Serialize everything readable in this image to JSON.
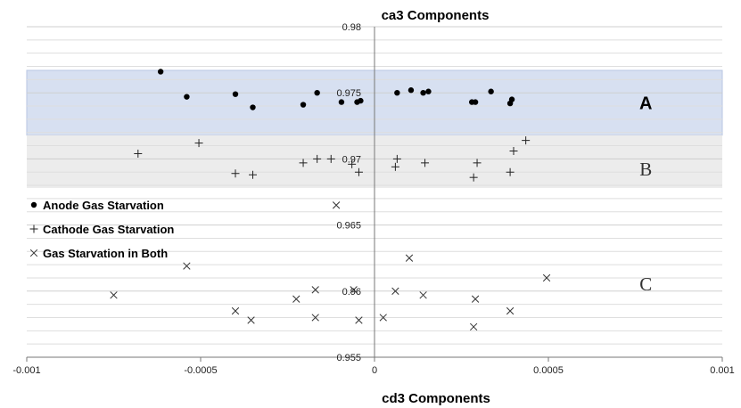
{
  "chart_data": {
    "type": "scatter",
    "title": "ca3 Components",
    "xlabel": "cd3  Components",
    "ylabel": "",
    "xlim": [
      -0.001,
      0.001
    ],
    "ylim": [
      0.955,
      0.98
    ],
    "x_ticks": [
      {
        "value": -0.001,
        "label": "-0.001"
      },
      {
        "value": -0.0005,
        "label": "-0.0005"
      },
      {
        "value": 0,
        "label": "0"
      },
      {
        "value": 0.0005,
        "label": "0.0005"
      },
      {
        "value": 0.001,
        "label": "0.001"
      }
    ],
    "y_ticks": [
      {
        "value": 0.955,
        "label": "0.955"
      },
      {
        "value": 0.96,
        "label": "0.96"
      },
      {
        "value": 0.965,
        "label": "0.965"
      },
      {
        "value": 0.97,
        "label": "0.97"
      },
      {
        "value": 0.975,
        "label": "0.975"
      },
      {
        "value": 0.98,
        "label": "0.98"
      }
    ],
    "grid": true,
    "legend_position": "left",
    "regions": [
      {
        "label": "A",
        "y_range": [
          0.9718,
          0.9767
        ],
        "color": "#d7e0f1",
        "label_at": {
          "x": 0.00078,
          "y": 0.9743
        }
      },
      {
        "label": "B",
        "y_range": [
          0.9678,
          0.9718
        ],
        "color": "#ececec",
        "label_at": {
          "x": 0.00078,
          "y": 0.9693
        }
      },
      {
        "label": "C",
        "y_range": null,
        "color": null,
        "label_at": {
          "x": 0.00078,
          "y": 0.9606
        }
      }
    ],
    "series": [
      {
        "name": "Anode Gas Starvation",
        "marker": "dot",
        "points": [
          [
            -0.000615,
            0.9766
          ],
          [
            -0.00054,
            0.9747
          ],
          [
            -0.0004,
            0.9749
          ],
          [
            -0.00035,
            0.9739
          ],
          [
            -0.000165,
            0.975
          ],
          [
            -0.000205,
            0.9741
          ],
          [
            -9.5e-05,
            0.9743
          ],
          [
            -5e-05,
            0.9743
          ],
          [
            -4e-05,
            0.9744
          ],
          [
            6.5e-05,
            0.975
          ],
          [
            0.000105,
            0.9752
          ],
          [
            0.00014,
            0.975
          ],
          [
            0.000155,
            0.9751
          ],
          [
            0.00028,
            0.9743
          ],
          [
            0.00029,
            0.9743
          ],
          [
            0.000335,
            0.9751
          ],
          [
            0.00039,
            0.9742
          ],
          [
            0.000395,
            0.9745
          ]
        ]
      },
      {
        "name": "Cathode Gas Starvation",
        "marker": "plus",
        "points": [
          [
            -0.00068,
            0.9704
          ],
          [
            -0.000505,
            0.9712
          ],
          [
            -0.0004,
            0.9689
          ],
          [
            -0.00035,
            0.9688
          ],
          [
            -0.000205,
            0.9697
          ],
          [
            -0.000165,
            0.97
          ],
          [
            -0.000125,
            0.97
          ],
          [
            -6.5e-05,
            0.9696
          ],
          [
            -4.5e-05,
            0.969
          ],
          [
            6.5e-05,
            0.97
          ],
          [
            6e-05,
            0.9694
          ],
          [
            0.000145,
            0.9697
          ],
          [
            0.000295,
            0.9697
          ],
          [
            0.000285,
            0.9686
          ],
          [
            0.00039,
            0.969
          ],
          [
            0.0004,
            0.9706
          ],
          [
            0.000435,
            0.9714
          ]
        ]
      },
      {
        "name": "Gas Starvation in Both",
        "marker": "x",
        "points": [
          [
            -0.00075,
            0.9597
          ],
          [
            -0.00054,
            0.9619
          ],
          [
            -0.0004,
            0.9585
          ],
          [
            -0.000355,
            0.9578
          ],
          [
            -0.000225,
            0.9594
          ],
          [
            -0.00017,
            0.9601
          ],
          [
            -0.00017,
            0.958
          ],
          [
            -0.00011,
            0.9665
          ],
          [
            -4.5e-05,
            0.9578
          ],
          [
            -6e-05,
            0.9601
          ],
          [
            2.5e-05,
            0.958
          ],
          [
            6e-05,
            0.96
          ],
          [
            0.0001,
            0.9625
          ],
          [
            0.00014,
            0.9597
          ],
          [
            0.00029,
            0.9594
          ],
          [
            0.000285,
            0.9573
          ],
          [
            0.00039,
            0.9585
          ],
          [
            0.000495,
            0.961
          ]
        ]
      }
    ]
  }
}
